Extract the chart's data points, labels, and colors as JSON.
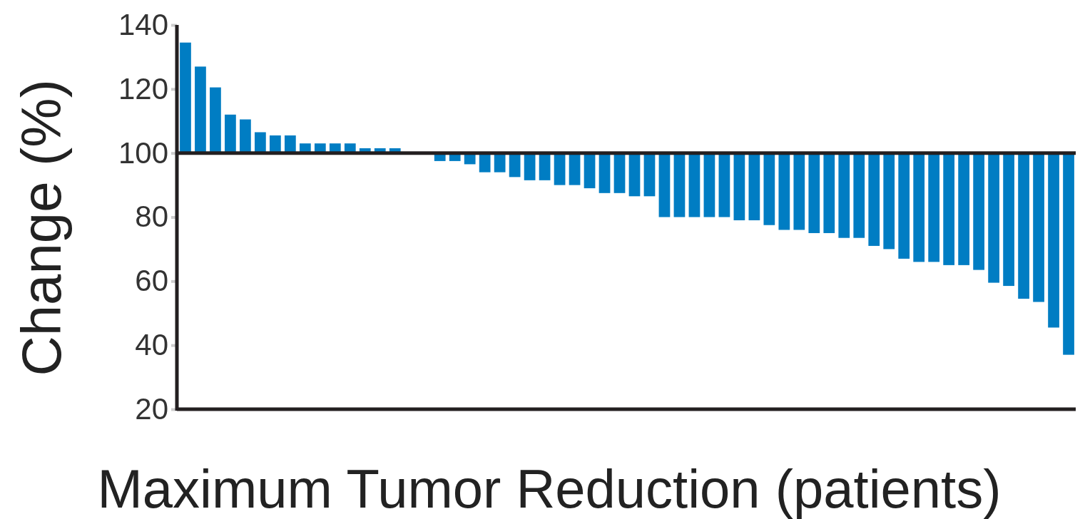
{
  "chart_data": {
    "type": "bar",
    "xlabel": "Maximum Tumor Reduction (patients)",
    "ylabel": "Change (%)",
    "categories": [
      null,
      null,
      null,
      null,
      null,
      null,
      null,
      null,
      null,
      null,
      null,
      null,
      null,
      null,
      null,
      null,
      null,
      null,
      null,
      null,
      null,
      null,
      null,
      null,
      null,
      null,
      null,
      null,
      null,
      null,
      null,
      null,
      null,
      null,
      null,
      null,
      null,
      null,
      null,
      null,
      null,
      null,
      null,
      null,
      null,
      null,
      null,
      null,
      null,
      null,
      null,
      null,
      null,
      null,
      null,
      null,
      null,
      null,
      null,
      null
    ],
    "base": [
      100,
      100,
      100,
      100,
      100,
      100,
      100,
      100,
      100,
      100,
      100,
      100,
      100,
      100,
      100,
      null,
      null,
      100,
      100,
      100,
      100,
      100,
      100,
      100,
      100,
      100,
      100,
      100,
      100,
      100,
      100,
      100,
      100,
      100,
      100,
      100,
      100,
      100,
      100,
      100,
      100,
      100,
      100,
      100,
      100,
      100,
      100,
      100,
      100,
      100,
      100,
      100,
      100,
      100,
      100,
      100,
      100,
      100,
      100,
      100
    ],
    "values": [
      34.5,
      27,
      20.5,
      12,
      10.5,
      6.5,
      5.5,
      5.5,
      3,
      3,
      3,
      3,
      1.5,
      1.5,
      1.5,
      null,
      null,
      -2.5,
      -2.5,
      -3.5,
      -6,
      -6,
      -7.5,
      -8.5,
      -8.5,
      -10,
      -10,
      -11,
      -12.5,
      -12.5,
      -13.5,
      -13.5,
      -20,
      -20,
      -20,
      -20,
      -20,
      -21,
      -21,
      -22.5,
      -24,
      -24,
      -25,
      -25,
      -26.5,
      -26.5,
      -29,
      -30,
      -33,
      -34,
      -34,
      -35,
      -35,
      -36.5,
      -40.5,
      -41.5,
      -45.5,
      -46.5,
      -54.5,
      -63
    ],
    "color": "#007dc3",
    "ylim": [
      20,
      140
    ],
    "yticks": [
      20,
      40,
      60,
      80,
      100,
      120,
      140
    ],
    "grid": false,
    "ref_lines": [
      {
        "axis": "y",
        "value": 100,
        "color": "#231f20"
      }
    ]
  }
}
